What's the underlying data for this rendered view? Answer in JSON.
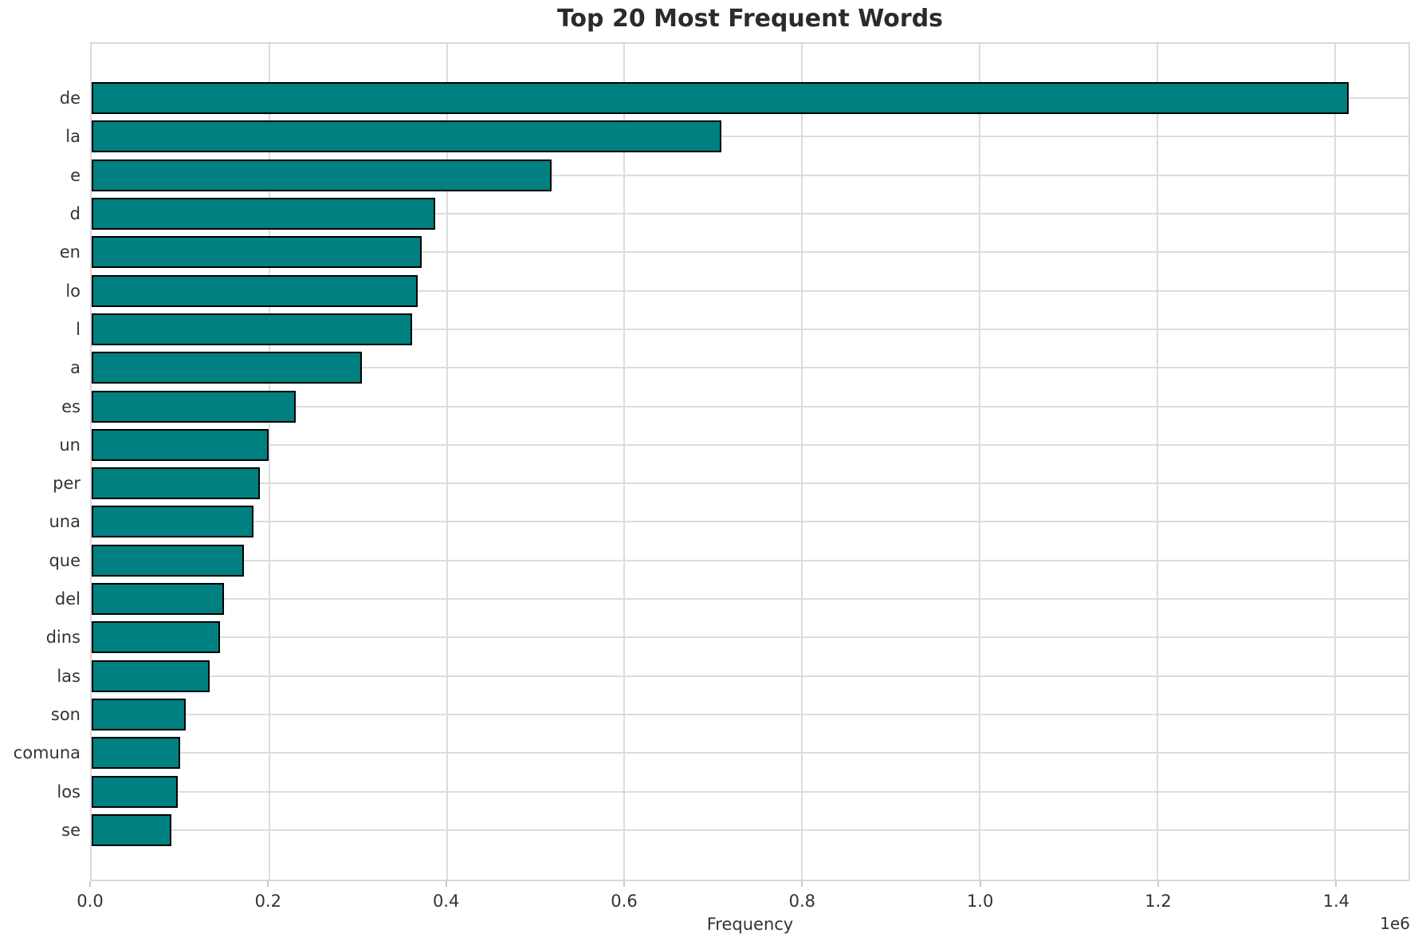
{
  "chart_data": {
    "type": "bar",
    "orientation": "horizontal",
    "title": "Top 20 Most Frequent Words",
    "xlabel": "Frequency",
    "ylabel": "",
    "offset_label": "1e6",
    "categories": [
      "de",
      "la",
      "e",
      "d",
      "en",
      "lo",
      "l",
      "a",
      "es",
      "un",
      "per",
      "una",
      "que",
      "del",
      "dins",
      "las",
      "son",
      "comuna",
      "los",
      "se"
    ],
    "values": [
      1412000,
      706000,
      514000,
      383000,
      368000,
      364000,
      357000,
      301000,
      226000,
      196000,
      186000,
      179000,
      168000,
      145000,
      141000,
      129000,
      102000,
      96000,
      93000,
      86000
    ],
    "xlim": [
      0,
      1483000
    ],
    "xticks": [
      0,
      200000,
      400000,
      600000,
      800000,
      1000000,
      1200000,
      1400000
    ],
    "xtick_labels": [
      "0.0",
      "0.2",
      "0.4",
      "0.6",
      "0.8",
      "1.0",
      "1.2",
      "1.4"
    ],
    "grid": true,
    "legend": false,
    "bar_color": "#008080",
    "bar_edge_color": "#000000",
    "grid_color": "#dcdcdc",
    "background_color": "#ffffff"
  }
}
